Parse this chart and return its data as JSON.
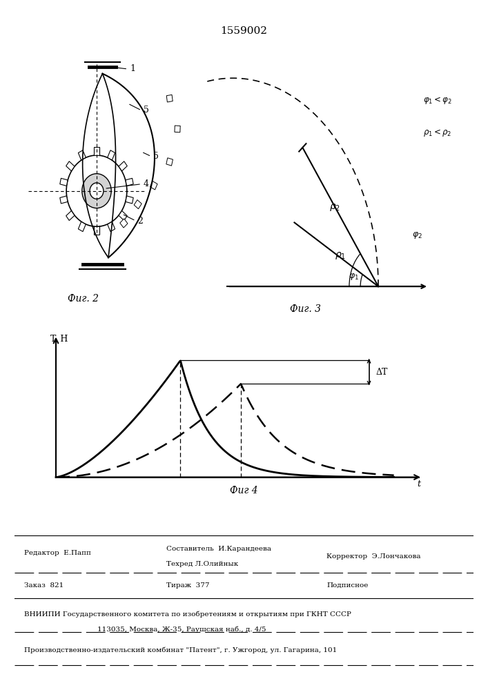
{
  "title": "1559002",
  "fig2_label": "Фиг. 2",
  "fig3_label": "Фиг. 3",
  "fig4_label": "Фиг 4",
  "fig4_ylabel": "T, H",
  "fig4_xlabel": "t",
  "fig4_delta_label": "ΔT",
  "background": "white"
}
